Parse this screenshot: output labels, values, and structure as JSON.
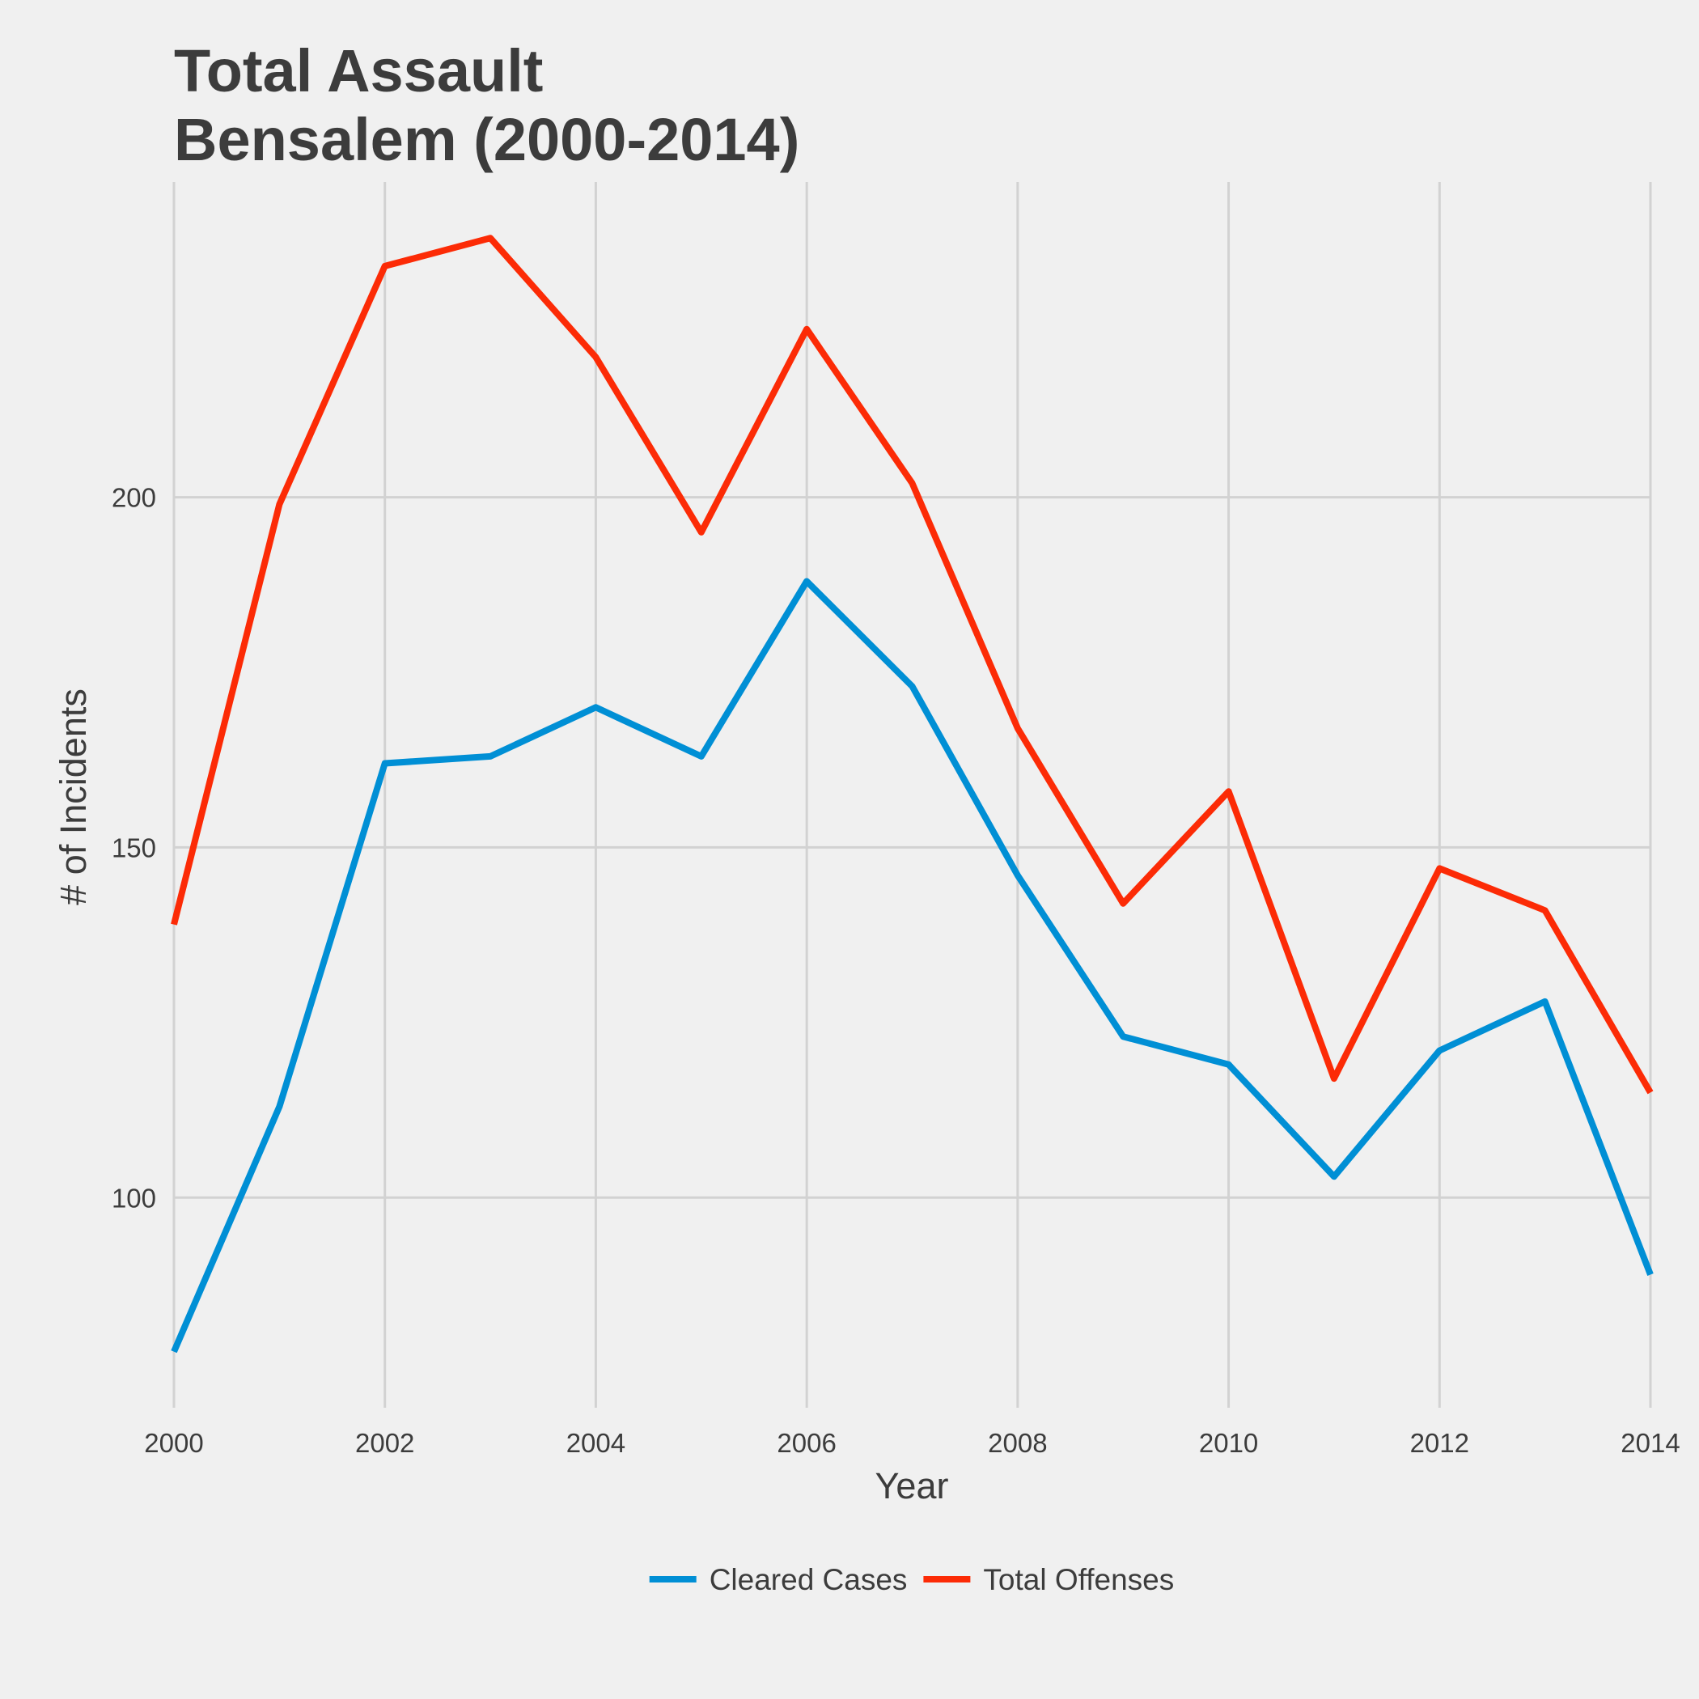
{
  "chart_data": {
    "type": "line",
    "title_lines": [
      "Total Assault",
      "Bensalem (2000-2014)"
    ],
    "xlabel": "Year",
    "ylabel": "# of Incidents",
    "x": [
      2000,
      2001,
      2002,
      2003,
      2004,
      2005,
      2006,
      2007,
      2008,
      2009,
      2010,
      2011,
      2012,
      2013,
      2014
    ],
    "x_ticks": [
      2000,
      2002,
      2004,
      2006,
      2008,
      2010,
      2012,
      2014
    ],
    "y_ticks": [
      100,
      150,
      200
    ],
    "xlim": [
      2000,
      2014
    ],
    "ylim": [
      70,
      245
    ],
    "grid": true,
    "legend_position": "bottom",
    "series": [
      {
        "name": "Cleared Cases",
        "color": "#008fd5",
        "values": [
          78,
          113,
          162,
          163,
          170,
          163,
          188,
          173,
          146,
          123,
          119,
          103,
          121,
          128,
          89
        ]
      },
      {
        "name": "Total Offenses",
        "color": "#fc2b06",
        "values": [
          139,
          199,
          233,
          237,
          220,
          195,
          224,
          202,
          167,
          142,
          158,
          117,
          147,
          141,
          115
        ]
      }
    ]
  }
}
